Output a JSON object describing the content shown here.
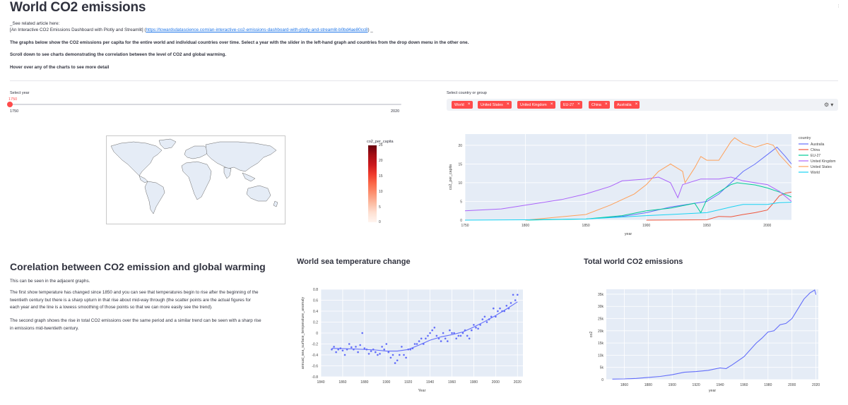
{
  "page": {
    "title": "World CO2 emissions",
    "menu_dots": "⋮"
  },
  "intro": {
    "see_related": "_See related article here:",
    "article_prefix": "[An Interactive CO2 Emissions Dashboard with Plotly and Streamlit] (",
    "article_link": "https://towardsdatascience.com/an-interactive-co2-emissions-dashboard-with-plotly-and-streamlit-b0bd4ae80cc8",
    "article_suffix": ") _",
    "para1": "The graphs below show the CO2 emissions per capita for the entire world and individual countries over time. Select a year with the slider in the left-hand graph and countries from the drop down menu in the other one.",
    "para2": "Scroll down to see charts demonstrating the correlation between the level of CO2 and global warming.",
    "para3": "Hover over any of the charts to see more detail"
  },
  "year_slider": {
    "label": "Select year",
    "value": "1750",
    "min": "1750",
    "max": "2020"
  },
  "country_select": {
    "label": "Select country or group",
    "chips": [
      "World",
      "United States",
      "United Kingdom",
      "EU-27",
      "China",
      "Australia"
    ],
    "remove_glyph": "×",
    "settings_glyph": "⚙ ▾"
  },
  "map": {
    "colorbar_title": "co2_per_capita",
    "colorbar_ticks": [
      "25",
      "20",
      "15",
      "10",
      "5",
      "0"
    ],
    "colors": [
      "#67000d",
      "#fff5f0"
    ]
  },
  "line_chart": {
    "legend_title": "country",
    "ylabel": "co2_per_capita",
    "xlabel": "year",
    "x_ticks": [
      "1750",
      "1800",
      "1850",
      "1900",
      "1950",
      "2000"
    ],
    "y_ticks": [
      "0",
      "5",
      "10",
      "15",
      "20"
    ]
  },
  "correlation": {
    "title": "Corelation between CO2 emission and global warming",
    "p1": "This can be seen in the adjacent graphs.",
    "p2": "The first show temperature has changed since 1850 and you can see that temperatures begin to rise after the beginning of the twentieth century but there is a sharp upturn in that rise about mid-way through (the scatter points are the actual figures for each year and the line is a lowess smoothing of those points so that we can more easily see the trend).",
    "p3": "The second graph shows the rise in total CO2 emissions over the same period and a similar trend can be seen with a sharp rise in emissions mid-twentieth century."
  },
  "sea_temp": {
    "title": "World sea temperature change",
    "xlabel": "Year",
    "ylabel": "annual_sea_surface_temperature_anomaly",
    "x_ticks": [
      "1840",
      "1860",
      "1880",
      "1900",
      "1920",
      "1940",
      "1960",
      "1980",
      "2000",
      "2020"
    ],
    "y_ticks": [
      "0.8",
      "0.6",
      "0.4",
      "0.2",
      "0",
      "-0.2",
      "-0.4",
      "-0.6",
      "-0.8"
    ]
  },
  "total_co2": {
    "title": "Total world CO2 emissions",
    "xlabel": "year",
    "ylabel": "co2",
    "x_ticks": [
      "1860",
      "1880",
      "1900",
      "1920",
      "1940",
      "1960",
      "1980",
      "2000",
      "2020"
    ],
    "y_ticks": [
      "35k",
      "30k",
      "25k",
      "20k",
      "15k",
      "10k",
      "5k",
      "0"
    ]
  },
  "chart_data": [
    {
      "type": "line",
      "title": "",
      "xlabel": "year",
      "ylabel": "co2_per_capita",
      "xlim": [
        1750,
        2020
      ],
      "ylim": [
        0,
        23
      ],
      "legend": "right",
      "series": [
        {
          "name": "Australia",
          "color": "#636efa",
          "x": [
            1860,
            1880,
            1900,
            1920,
            1940,
            1950,
            1960,
            1970,
            1980,
            1990,
            2000,
            2008,
            2015,
            2020
          ],
          "y": [
            0.5,
            1,
            2,
            3.5,
            4.5,
            5,
            7,
            10,
            13,
            15,
            17.5,
            19.5,
            17,
            15
          ]
        },
        {
          "name": "China",
          "color": "#ef553b",
          "x": [
            1900,
            1950,
            1960,
            1970,
            1980,
            1990,
            2000,
            2005,
            2010,
            2015,
            2020
          ],
          "y": [
            0,
            0.1,
            1,
            0.9,
            1.5,
            2,
            2.7,
            4.5,
            6.5,
            7.2,
            7.5
          ]
        },
        {
          "name": "EU-27",
          "color": "#00cc96",
          "x": [
            1800,
            1850,
            1880,
            1900,
            1920,
            1940,
            1945,
            1950,
            1960,
            1970,
            1975,
            1990,
            2000,
            2010,
            2020
          ],
          "y": [
            0,
            0.3,
            1.2,
            2.5,
            3.2,
            4.5,
            2,
            5.5,
            7.5,
            9.5,
            10,
            9.4,
            8.6,
            7.5,
            6.2
          ]
        },
        {
          "name": "United Kingdom",
          "color": "#ab63fa",
          "x": [
            1750,
            1780,
            1800,
            1830,
            1850,
            1870,
            1880,
            1900,
            1910,
            1920,
            1926,
            1930,
            1945,
            1950,
            1960,
            1970,
            1980,
            1990,
            2000,
            2010,
            2020
          ],
          "y": [
            2.5,
            3,
            4,
            5.5,
            7,
            9,
            10.5,
            11,
            11.5,
            10,
            6,
            9.5,
            11,
            11,
            11,
            11.5,
            10.5,
            10,
            9.5,
            7.7,
            5
          ]
        },
        {
          "name": "United States",
          "color": "#ffa15a",
          "x": [
            1800,
            1850,
            1870,
            1890,
            1900,
            1910,
            1920,
            1930,
            1932,
            1940,
            1945,
            1950,
            1960,
            1970,
            1973,
            1980,
            1990,
            2000,
            2005,
            2010,
            2020
          ],
          "y": [
            0,
            1.5,
            4,
            7,
            9.5,
            13,
            15,
            13,
            10,
            14,
            17,
            16,
            16,
            21,
            22,
            20.5,
            19.5,
            20.5,
            20,
            17.5,
            14
          ]
        },
        {
          "name": "World",
          "color": "#19d3f3",
          "x": [
            1750,
            1800,
            1850,
            1900,
            1920,
            1950,
            1970,
            1980,
            2000,
            2010,
            2020
          ],
          "y": [
            0,
            0.1,
            0.3,
            1.2,
            1.5,
            2,
            3.5,
            4.2,
            4.2,
            4.7,
            4.8
          ]
        }
      ]
    },
    {
      "type": "scatter",
      "title": "World sea temperature change",
      "xlabel": "Year",
      "ylabel": "annual_sea_surface_temperature_anomaly",
      "xlim": [
        1840,
        2025
      ],
      "ylim": [
        -0.8,
        0.8
      ],
      "series": [
        {
          "name": "",
          "x": [
            1850,
            1852,
            1854,
            1856,
            1858,
            1860,
            1862,
            1864,
            1866,
            1868,
            1870,
            1872,
            1874,
            1876,
            1878,
            1880,
            1882,
            1884,
            1886,
            1888,
            1890,
            1892,
            1894,
            1896,
            1898,
            1900,
            1902,
            1904,
            1906,
            1908,
            1910,
            1912,
            1914,
            1916,
            1918,
            1920,
            1922,
            1924,
            1926,
            1928,
            1930,
            1932,
            1934,
            1936,
            1938,
            1940,
            1942,
            1944,
            1946,
            1948,
            1950,
            1952,
            1954,
            1956,
            1958,
            1960,
            1962,
            1964,
            1966,
            1968,
            1970,
            1972,
            1974,
            1976,
            1978,
            1980,
            1982,
            1984,
            1986,
            1988,
            1990,
            1992,
            1994,
            1996,
            1998,
            2000,
            2002,
            2004,
            2006,
            2008,
            2010,
            2012,
            2014,
            2016,
            2018,
            2020
          ],
          "y": [
            -0.3,
            -0.25,
            -0.35,
            -0.3,
            -0.28,
            -0.32,
            -0.4,
            -0.3,
            -0.2,
            -0.26,
            -0.3,
            -0.25,
            -0.35,
            -0.22,
            0.0,
            -0.28,
            -0.3,
            -0.38,
            -0.33,
            -0.3,
            -0.35,
            -0.4,
            -0.38,
            -0.25,
            -0.3,
            -0.2,
            -0.35,
            -0.45,
            -0.4,
            -0.55,
            -0.5,
            -0.4,
            -0.25,
            -0.4,
            -0.45,
            -0.3,
            -0.3,
            -0.28,
            -0.2,
            -0.2,
            -0.15,
            -0.1,
            -0.2,
            -0.1,
            -0.05,
            0.0,
            0.05,
            0.1,
            -0.05,
            -0.1,
            -0.15,
            0.0,
            -0.1,
            -0.15,
            0.05,
            0.0,
            0.0,
            -0.1,
            -0.05,
            -0.05,
            0.0,
            0.05,
            -0.05,
            -0.1,
            0.05,
            0.15,
            0.1,
            0.08,
            0.15,
            0.25,
            0.3,
            0.2,
            0.25,
            0.3,
            0.45,
            0.3,
            0.4,
            0.45,
            0.4,
            0.4,
            0.5,
            0.45,
            0.55,
            0.7,
            0.6,
            0.7
          ]
        },
        {
          "name": "",
          "x": [
            1850,
            1870,
            1890,
            1900,
            1910,
            1920,
            1930,
            1940,
            1950,
            1960,
            1970,
            1980,
            1990,
            2000,
            2010,
            2020
          ],
          "y": [
            -0.28,
            -0.29,
            -0.31,
            -0.33,
            -0.33,
            -0.3,
            -0.22,
            -0.13,
            -0.07,
            -0.03,
            0.02,
            0.11,
            0.21,
            0.32,
            0.44,
            0.57
          ]
        }
      ]
    },
    {
      "type": "line",
      "title": "Total world CO2 emissions",
      "xlabel": "year",
      "ylabel": "co2",
      "xlim": [
        1845,
        2022
      ],
      "ylim": [
        0,
        37000
      ],
      "series": [
        {
          "name": "",
          "x": [
            1850,
            1860,
            1870,
            1880,
            1890,
            1900,
            1910,
            1920,
            1930,
            1940,
            1945,
            1950,
            1960,
            1970,
            1975,
            1980,
            1985,
            1990,
            1995,
            2000,
            2005,
            2010,
            2015,
            2019,
            2020
          ],
          "y": [
            200,
            300,
            500,
            900,
            1300,
            2000,
            3000,
            3300,
            3800,
            4800,
            4500,
            6000,
            9400,
            14900,
            17000,
            19500,
            20000,
            22500,
            23000,
            25000,
            29000,
            33000,
            35500,
            36700,
            34800
          ]
        }
      ]
    }
  ]
}
